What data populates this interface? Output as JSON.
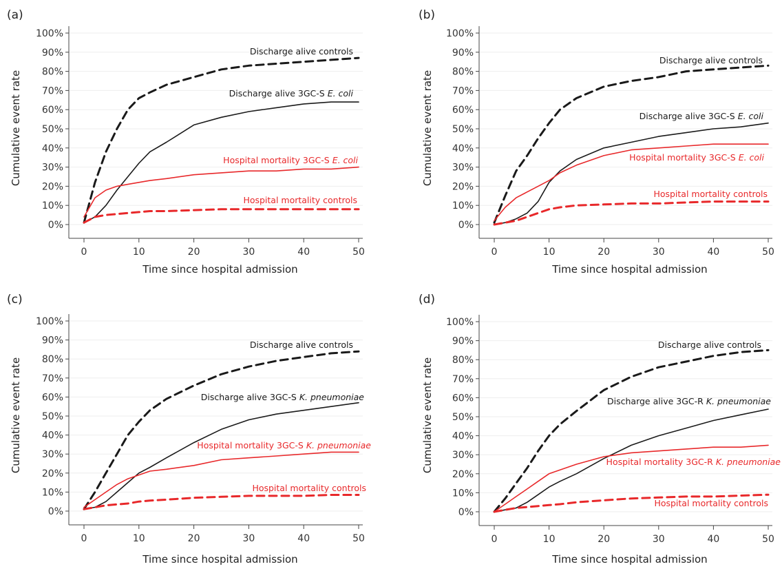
{
  "colors": {
    "black": "#1a1a1a",
    "red": "#e8282a"
  },
  "chart_data": [
    {
      "panel": "(a)",
      "type": "line",
      "xlabel": "Time since hospital admission",
      "ylabel": "Cumulative event rate",
      "xlim": [
        0,
        50
      ],
      "ylim": [
        0,
        100
      ],
      "x_ticks": [
        "0",
        "10",
        "20",
        "30",
        "40",
        "50"
      ],
      "y_ticks": [
        "0%",
        "10%",
        "20%",
        "30%",
        "40%",
        "50%",
        "60%",
        "70%",
        "80%",
        "90%",
        "100%"
      ],
      "grid": true,
      "series": [
        {
          "name": "Discharge alive controls",
          "color": "black",
          "style": "dashed",
          "x": [
            0,
            2,
            4,
            6,
            8,
            10,
            12,
            15,
            20,
            25,
            30,
            35,
            40,
            45,
            50
          ],
          "y": [
            1,
            22,
            38,
            50,
            60,
            66,
            69,
            73,
            77,
            81,
            83,
            84,
            85,
            86,
            87
          ]
        },
        {
          "name": "Discharge alive 3GC-S E. coli",
          "color": "black",
          "style": "solid",
          "x": [
            0,
            2,
            4,
            6,
            8,
            10,
            12,
            15,
            20,
            25,
            30,
            35,
            40,
            45,
            50
          ],
          "y": [
            1,
            4,
            10,
            18,
            25,
            32,
            38,
            43,
            52,
            56,
            59,
            61,
            63,
            64,
            64
          ]
        },
        {
          "name": "Hospital mortality 3GC-S E. coli",
          "color": "red",
          "style": "solid",
          "x": [
            0,
            2,
            4,
            6,
            8,
            10,
            12,
            15,
            20,
            25,
            30,
            35,
            40,
            45,
            50
          ],
          "y": [
            4,
            14,
            18,
            20,
            21,
            22,
            23,
            24,
            26,
            27,
            28,
            28,
            29,
            29,
            30
          ]
        },
        {
          "name": "Hospital mortality controls",
          "color": "red",
          "style": "dashed",
          "x": [
            0,
            2,
            4,
            6,
            8,
            10,
            12,
            15,
            20,
            25,
            30,
            35,
            40,
            45,
            50
          ],
          "y": [
            1,
            4,
            5,
            5.5,
            6,
            6.5,
            7,
            7,
            7.5,
            8,
            8,
            8,
            8,
            8,
            8
          ]
        }
      ]
    },
    {
      "panel": "(b)",
      "type": "line",
      "xlabel": "Time since hospital admission",
      "ylabel": "Cumulative event rate",
      "xlim": [
        0,
        50
      ],
      "ylim": [
        0,
        100
      ],
      "x_ticks": [
        "0",
        "10",
        "20",
        "30",
        "40",
        "50"
      ],
      "y_ticks": [
        "0%",
        "10%",
        "20%",
        "30%",
        "40%",
        "50%",
        "60%",
        "70%",
        "80%",
        "90%",
        "100%"
      ],
      "grid": true,
      "series": [
        {
          "name": "Discharge alive controls",
          "color": "black",
          "style": "dashed",
          "x": [
            0,
            2,
            4,
            6,
            8,
            10,
            12,
            15,
            20,
            25,
            30,
            35,
            40,
            45,
            50
          ],
          "y": [
            1,
            15,
            28,
            36,
            45,
            53,
            60,
            66,
            72,
            75,
            77,
            80,
            81,
            82,
            83
          ]
        },
        {
          "name": "Discharge alive 3GC-S E. coli",
          "color": "black",
          "style": "solid",
          "x": [
            0,
            2,
            4,
            6,
            8,
            10,
            12,
            15,
            20,
            25,
            30,
            35,
            40,
            45,
            50
          ],
          "y": [
            0,
            1,
            3,
            6,
            12,
            22,
            28,
            34,
            40,
            43,
            46,
            48,
            50,
            51,
            53
          ]
        },
        {
          "name": "Hospital mortality 3GC-S E. coli",
          "color": "red",
          "style": "solid",
          "x": [
            0,
            2,
            4,
            6,
            8,
            10,
            12,
            15,
            20,
            25,
            30,
            35,
            40,
            45,
            50
          ],
          "y": [
            2,
            9,
            14,
            17,
            20,
            23,
            27,
            31,
            36,
            39,
            40,
            41,
            42,
            42,
            42
          ]
        },
        {
          "name": "Hospital mortality controls",
          "color": "red",
          "style": "dashed",
          "x": [
            0,
            2,
            4,
            6,
            8,
            10,
            12,
            15,
            20,
            25,
            30,
            35,
            40,
            45,
            50
          ],
          "y": [
            0,
            1,
            2,
            4,
            6,
            8,
            9,
            10,
            10.5,
            11,
            11,
            11.5,
            12,
            12,
            12
          ]
        }
      ]
    },
    {
      "panel": "(c)",
      "type": "line",
      "xlabel": "Time since hospital admission",
      "ylabel": "Cumulative event rate",
      "xlim": [
        0,
        50
      ],
      "ylim": [
        0,
        100
      ],
      "x_ticks": [
        "0",
        "10",
        "20",
        "30",
        "40",
        "50"
      ],
      "y_ticks": [
        "0%",
        "10%",
        "20%",
        "30%",
        "40%",
        "50%",
        "60%",
        "70%",
        "80%",
        "90%",
        "100%"
      ],
      "grid": true,
      "series": [
        {
          "name": "Discharge alive controls",
          "color": "black",
          "style": "dashed",
          "x": [
            0,
            2,
            4,
            6,
            8,
            10,
            12,
            15,
            20,
            25,
            30,
            35,
            40,
            45,
            50
          ],
          "y": [
            1,
            10,
            20,
            30,
            40,
            47,
            53,
            59,
            66,
            72,
            76,
            79,
            81,
            83,
            84
          ]
        },
        {
          "name": "Discharge alive 3GC-S K. pneumoniae",
          "color": "black",
          "style": "solid",
          "x": [
            0,
            2,
            4,
            6,
            8,
            10,
            12,
            15,
            20,
            25,
            30,
            35,
            40,
            45,
            50
          ],
          "y": [
            1,
            2,
            5,
            10,
            15,
            20,
            23,
            28,
            36,
            43,
            48,
            51,
            53,
            55,
            57
          ]
        },
        {
          "name": "Hospital mortality 3GC-S K. pneumoniae",
          "color": "red",
          "style": "solid",
          "x": [
            0,
            2,
            4,
            6,
            8,
            10,
            12,
            15,
            20,
            25,
            30,
            35,
            40,
            45,
            50
          ],
          "y": [
            2,
            6,
            10,
            14,
            17,
            19,
            21,
            22,
            24,
            27,
            28,
            29,
            30,
            31,
            31
          ]
        },
        {
          "name": "Hospital mortality controls",
          "color": "red",
          "style": "dashed",
          "x": [
            0,
            2,
            4,
            6,
            8,
            10,
            12,
            15,
            20,
            25,
            30,
            35,
            40,
            45,
            50
          ],
          "y": [
            1,
            2,
            3,
            3.5,
            4,
            5,
            5.5,
            6,
            7,
            7.5,
            8,
            8,
            8,
            8.5,
            8.5
          ]
        }
      ]
    },
    {
      "panel": "(d)",
      "type": "line",
      "xlabel": "Time since hospital admission",
      "ylabel": "Cumulative event rate",
      "xlim": [
        0,
        50
      ],
      "ylim": [
        0,
        100
      ],
      "x_ticks": [
        "0",
        "10",
        "20",
        "30",
        "40",
        "50"
      ],
      "y_ticks": [
        "0%",
        "10%",
        "20%",
        "30%",
        "40%",
        "50%",
        "60%",
        "70%",
        "80%",
        "90%",
        "100%"
      ],
      "grid": true,
      "series": [
        {
          "name": "Discharge alive controls",
          "color": "black",
          "style": "dashed",
          "x": [
            0,
            2,
            4,
            6,
            8,
            10,
            12,
            15,
            20,
            25,
            30,
            35,
            40,
            45,
            50
          ],
          "y": [
            0,
            7,
            15,
            23,
            32,
            40,
            46,
            53,
            64,
            71,
            76,
            79,
            82,
            84,
            85
          ]
        },
        {
          "name": "Discharge alive 3GC-R K. pneumoniae",
          "color": "black",
          "style": "solid",
          "x": [
            0,
            2,
            4,
            6,
            8,
            10,
            12,
            15,
            20,
            25,
            30,
            35,
            40,
            45,
            50
          ],
          "y": [
            0,
            1,
            2,
            5,
            9,
            13,
            16,
            20,
            28,
            35,
            40,
            44,
            48,
            51,
            54
          ]
        },
        {
          "name": "Hospital mortality 3GC-R K. pneumoniae",
          "color": "red",
          "style": "solid",
          "x": [
            0,
            2,
            4,
            6,
            8,
            10,
            12,
            15,
            20,
            25,
            30,
            35,
            40,
            45,
            50
          ],
          "y": [
            0,
            4,
            8,
            12,
            16,
            20,
            22,
            25,
            29,
            31,
            32,
            33,
            34,
            34,
            35
          ]
        },
        {
          "name": "Hospital mortality controls",
          "color": "red",
          "style": "dashed",
          "x": [
            0,
            2,
            4,
            6,
            8,
            10,
            12,
            15,
            20,
            25,
            30,
            35,
            40,
            45,
            50
          ],
          "y": [
            0,
            1,
            2,
            2.5,
            3,
            3.5,
            4,
            5,
            6,
            7,
            7.5,
            8,
            8,
            8.5,
            9
          ]
        }
      ]
    }
  ]
}
